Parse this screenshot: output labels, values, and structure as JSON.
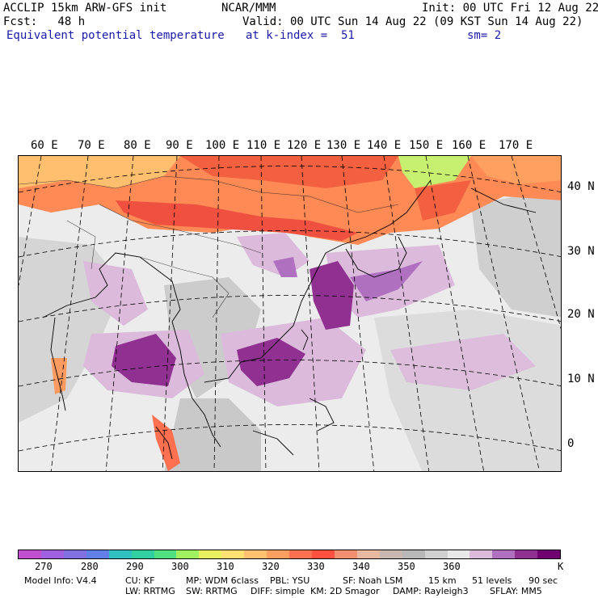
{
  "header": {
    "line1_left": "ACCLIP 15km ARW-GFS init",
    "line1_mid": "NCAR/MMM",
    "line1_right": "Init: 00 UTC Fri 12 Aug 22",
    "line2_left": "Fcst:   48 h",
    "line2_right": "Valid: 00 UTC Sun 14 Aug 22 (09 KST Sun 14 Aug 22)",
    "line3_left": "Equivalent potential temperature",
    "line3_mid": "at k-index =  51",
    "line3_right": "sm= 2"
  },
  "map": {
    "lon_labels": [
      "60 E",
      "70 E",
      "80 E",
      "90 E",
      "100 E",
      "110 E",
      "120 E",
      "130 E",
      "140 E",
      "150 E",
      "160 E",
      "170 E"
    ],
    "lat_labels": [
      "40 N",
      "30 N",
      "20 N",
      "10 N",
      "0"
    ]
  },
  "colorbar": {
    "colors": [
      "#c050d0",
      "#a060e0",
      "#8070e0",
      "#6080e8",
      "#30c0c0",
      "#30d0a0",
      "#50e080",
      "#a0f060",
      "#e8f060",
      "#ffe070",
      "#ffc070",
      "#ffa060",
      "#ff7050",
      "#ff5040",
      "#f09070",
      "#e8b8a0",
      "#c8b8b0",
      "#b8b8b8",
      "#d0d0d0",
      "#e8e8e8",
      "#dcbadc",
      "#b070c0",
      "#903090",
      "#700070"
    ],
    "ticks": [
      "270",
      "280",
      "290",
      "300",
      "310",
      "320",
      "330",
      "340",
      "350",
      "360"
    ],
    "unit": "K"
  },
  "footer": {
    "row1": [
      "Model Info: V4.4",
      "CU: KF",
      "MP: WDM 6class",
      "PBL: YSU",
      "SF: Noah LSM",
      "15 km",
      "51 levels",
      "90 sec"
    ],
    "row2": [
      "LW: RRTMG",
      "SW: RRTMG",
      "DIFF: simple",
      "KM: 2D Smagor",
      "DAMP: Rayleigh3",
      "SFLAY: MM5"
    ]
  }
}
